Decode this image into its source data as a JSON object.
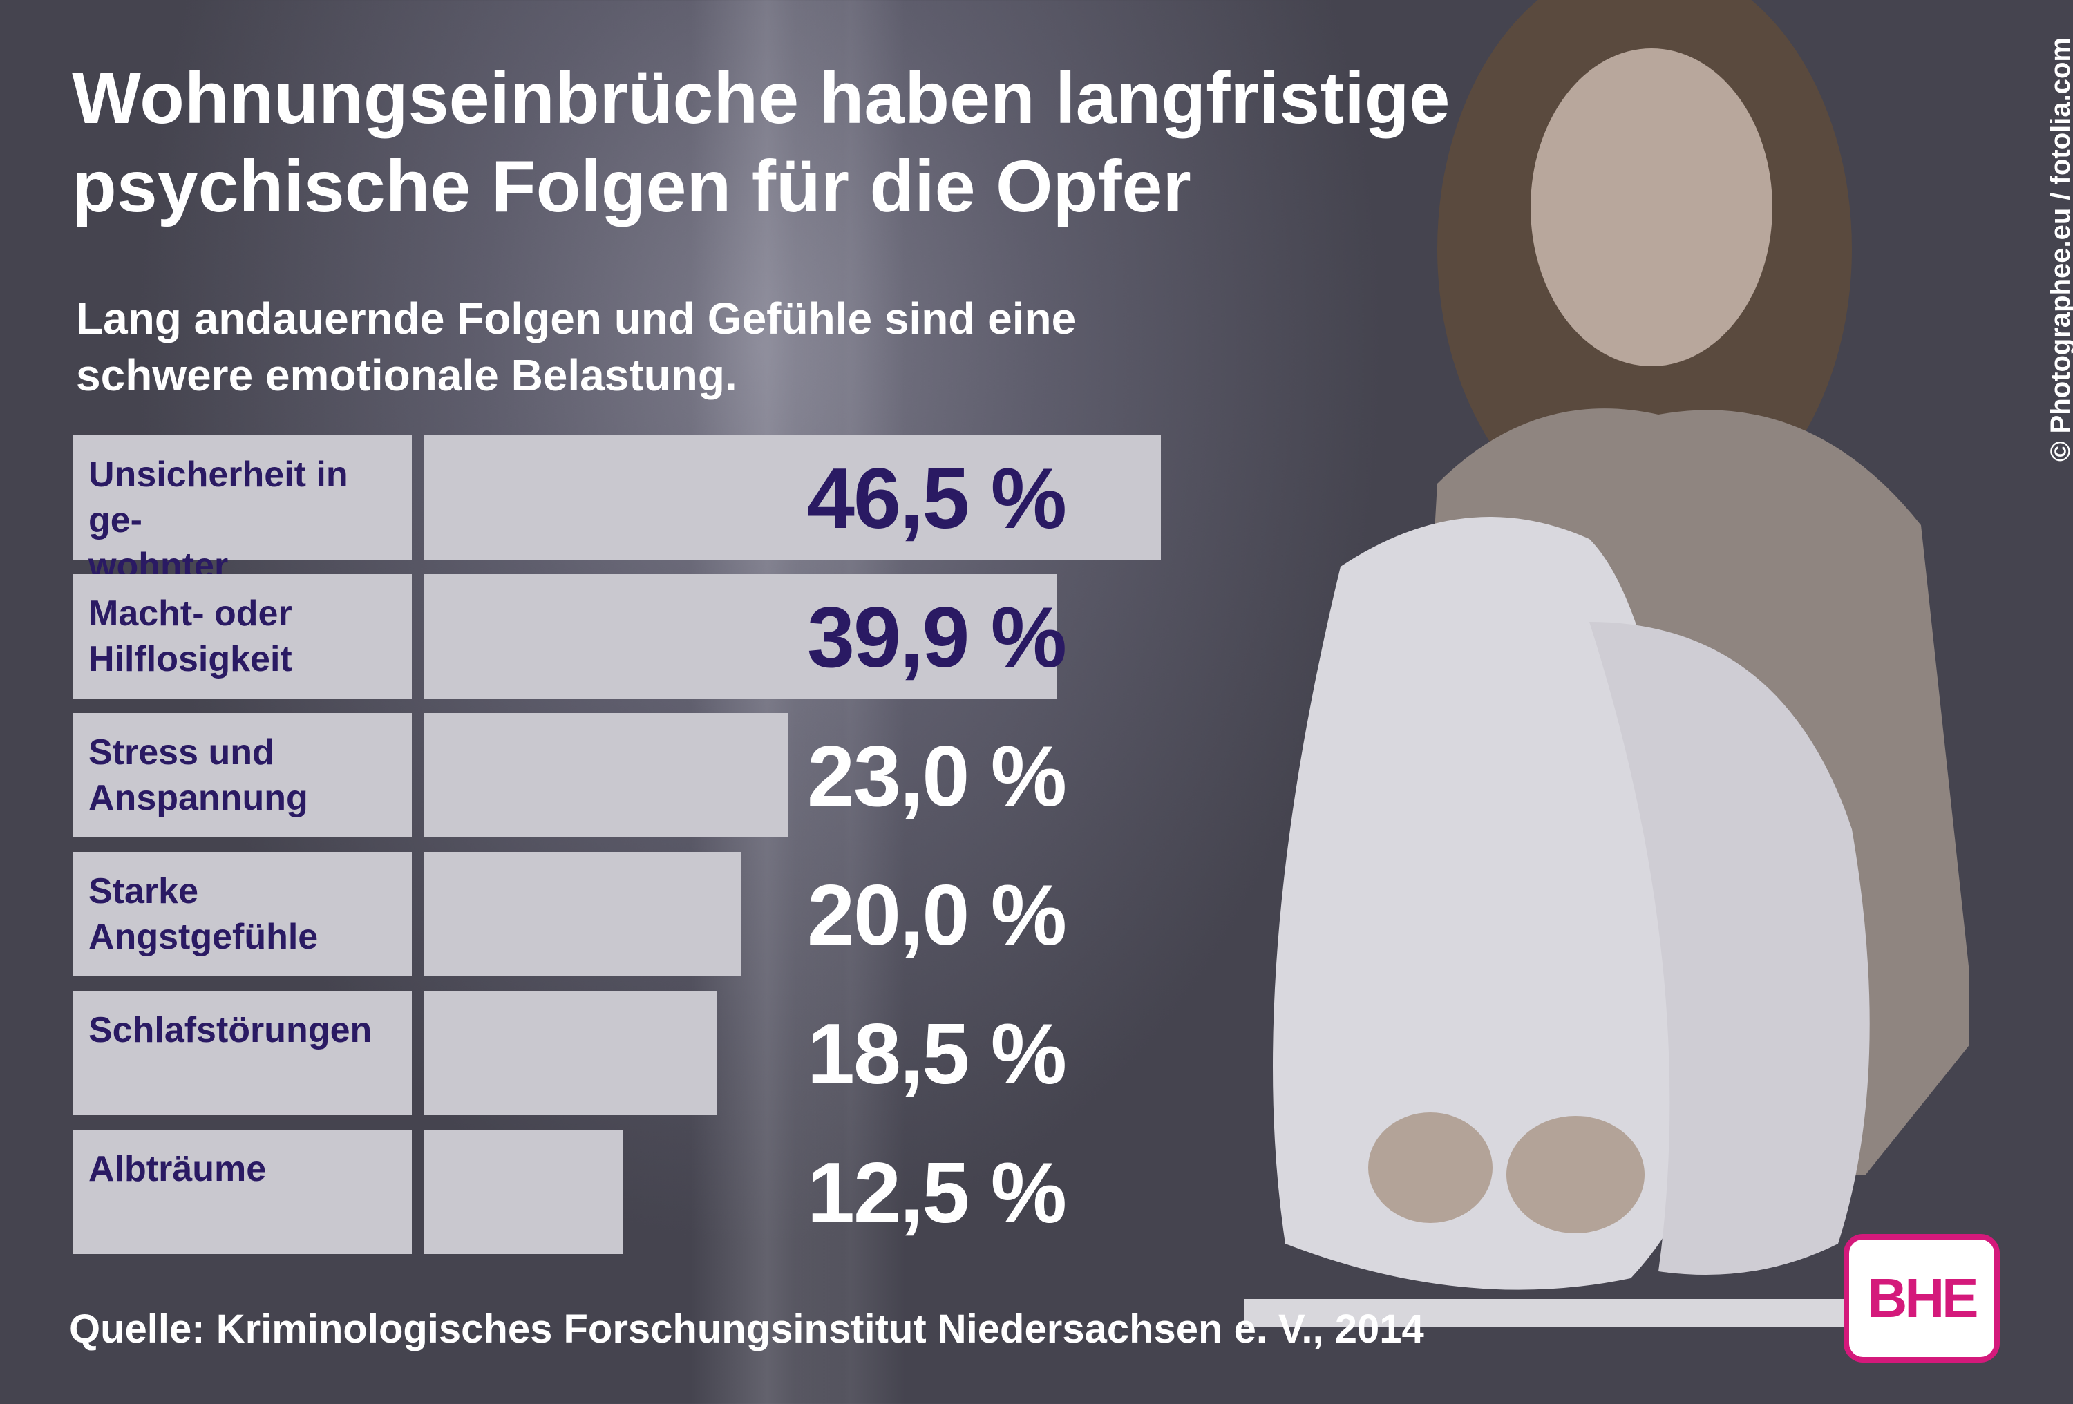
{
  "title": "Wohnungseinbrüche haben langfristige psychische Folgen für die Opfer",
  "subtitle": "Lang andauernde Folgen und Gefühle sind eine schwere emotionale Belastung.",
  "credit": "© Photographee.eu / fotolia.com",
  "source": "Quelle: Kriminologisches Forschungsinstitut Niedersachsen e. V., 2014",
  "logo": "BHE",
  "colors": {
    "label_text": "#2a1a63",
    "value_dark": "#2a1a63",
    "value_light": "#ffffff",
    "bar": "#c9c8cf",
    "logo": "#d4197b"
  },
  "chart_data": {
    "type": "bar",
    "orientation": "horizontal",
    "categories": [
      "Unsicherheit in ge-\nwohnter Umgebung",
      "Macht- oder\nHilflosigkeit",
      "Stress und\nAnspannung",
      "Starke\nAngstgefühle",
      "Schlafstörungen",
      "Albträume"
    ],
    "values": [
      46.5,
      39.9,
      23.0,
      20.0,
      18.5,
      12.5
    ],
    "value_labels": [
      "46,5 %",
      "39,9 %",
      "23,0 %",
      "20,0 %",
      "18,5 %",
      "12,5 %"
    ],
    "xlim": [
      0,
      46.5
    ]
  }
}
